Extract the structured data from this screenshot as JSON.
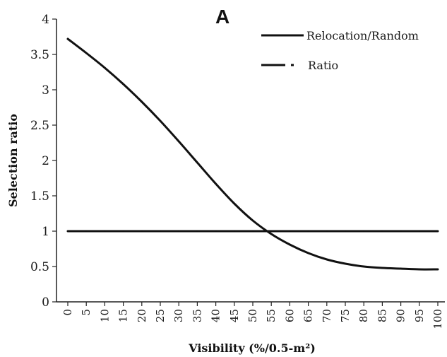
{
  "chart_data": {
    "type": "line",
    "panel_label": "A",
    "xlabel": "Visibility (%/0.5-m²)",
    "ylabel": "Selection ratio",
    "ylim": [
      0,
      4
    ],
    "yticks": [
      "0",
      "0.5",
      "1",
      "1.5",
      "2",
      "2.5",
      "3",
      "3.5",
      "4"
    ],
    "x": [
      0,
      5,
      10,
      15,
      20,
      25,
      30,
      35,
      40,
      45,
      50,
      55,
      60,
      65,
      70,
      75,
      80,
      85,
      90,
      95,
      100
    ],
    "xticks": [
      "0",
      "5",
      "10",
      "15",
      "20",
      "25",
      "30",
      "35",
      "40",
      "45",
      "50",
      "55",
      "60",
      "65",
      "70",
      "75",
      "80",
      "85",
      "90",
      "95",
      "100"
    ],
    "series": [
      {
        "name": "Relocation/Random",
        "style": "solid",
        "values": [
          3.72,
          3.52,
          3.31,
          3.08,
          2.83,
          2.56,
          2.27,
          1.97,
          1.67,
          1.39,
          1.15,
          0.96,
          0.81,
          0.69,
          0.6,
          0.54,
          0.5,
          0.48,
          0.47,
          0.46,
          0.46
        ]
      },
      {
        "name": "Ratio",
        "style": "dashed",
        "values": [
          1,
          1,
          1,
          1,
          1,
          1,
          1,
          1,
          1,
          1,
          1,
          1,
          1,
          1,
          1,
          1,
          1,
          1,
          1,
          1,
          1
        ]
      }
    ],
    "grid": false,
    "legend_position": "top-right",
    "line_color": "#111111"
  }
}
